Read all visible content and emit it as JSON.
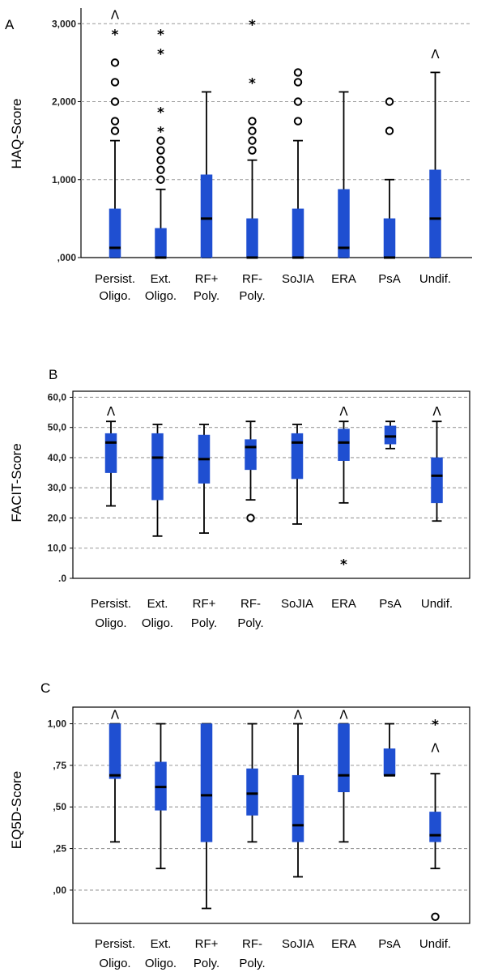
{
  "figure_top_fragment": "",
  "colors": {
    "box": "#1f4fd1",
    "median": "#000000",
    "grid": "#999999",
    "axis": "#000000"
  },
  "chart_data": [
    {
      "panel": "A",
      "type": "boxplot",
      "ylabel": "HAQ-Score",
      "ylim": [
        0,
        3.2
      ],
      "yticks": [
        0,
        1,
        2,
        3
      ],
      "ytick_labels": [
        ",000",
        "1,000",
        "2,000",
        "3,000"
      ],
      "categories": [
        "Persist.\nOligo.",
        "Ext.\nOligo.",
        "RF+\nPoly.",
        "RF-\nPoly.",
        "SoJIA",
        "ERA",
        "PsA",
        "Undif."
      ],
      "boxes": [
        {
          "whisker_low": 0,
          "q1": 0,
          "median": 0.125,
          "q3": 0.625,
          "whisker_high": 1.5,
          "outliers": [
            1.625,
            1.75,
            2.0,
            2.25,
            2.5
          ],
          "extremes": [
            2.875
          ],
          "caret": 3.1
        },
        {
          "whisker_low": 0,
          "q1": 0,
          "median": 0,
          "q3": 0.375,
          "whisker_high": 0.875,
          "outliers": [
            1.0,
            1.125,
            1.25,
            1.375,
            1.5
          ],
          "extremes": [
            1.625,
            1.875,
            2.625,
            2.875
          ],
          "caret": null
        },
        {
          "whisker_low": 0,
          "q1": 0,
          "median": 0.5,
          "q3": 1.0625,
          "whisker_high": 2.125,
          "outliers": [],
          "extremes": [],
          "caret": null
        },
        {
          "whisker_low": 0,
          "q1": 0,
          "median": 0,
          "q3": 0.5,
          "whisker_high": 1.25,
          "outliers": [
            1.375,
            1.5,
            1.625,
            1.75
          ],
          "extremes": [
            2.25,
            3.0
          ],
          "caret": null
        },
        {
          "whisker_low": 0,
          "q1": 0,
          "median": 0,
          "q3": 0.625,
          "whisker_high": 1.5,
          "outliers": [
            1.75,
            2.0,
            2.25,
            2.375
          ],
          "extremes": [],
          "caret": null
        },
        {
          "whisker_low": 0,
          "q1": 0,
          "median": 0.125,
          "q3": 0.875,
          "whisker_high": 2.125,
          "outliers": [],
          "extremes": [],
          "caret": null
        },
        {
          "whisker_low": 0,
          "q1": 0,
          "median": 0,
          "q3": 0.5,
          "whisker_high": 1.0,
          "outliers": [
            1.625,
            2.0
          ],
          "extremes": [],
          "caret": null
        },
        {
          "whisker_low": 0,
          "q1": 0,
          "median": 0.5,
          "q3": 1.125,
          "whisker_high": 2.375,
          "outliers": [],
          "extremes": [],
          "caret": 2.6
        }
      ]
    },
    {
      "panel": "B",
      "type": "boxplot",
      "ylabel": "FACIT-Score",
      "ylim": [
        0,
        62
      ],
      "yticks": [
        0,
        10,
        20,
        30,
        40,
        50,
        60
      ],
      "ytick_labels": [
        ".0",
        "10,0",
        "20,0",
        "30,0",
        "40,0",
        "50,0",
        "60,0"
      ],
      "categories": [
        "Persist.\nOligo.",
        "Ext.\nOligo.",
        "RF+\nPoly.",
        "RF-\nPoly.",
        "SoJIA",
        "ERA",
        "PsA",
        "Undif."
      ],
      "boxes": [
        {
          "whisker_low": 24,
          "q1": 35,
          "median": 45,
          "q3": 48,
          "whisker_high": 52,
          "outliers": [],
          "extremes": [],
          "caret": 55
        },
        {
          "whisker_low": 14,
          "q1": 26,
          "median": 40,
          "q3": 48,
          "whisker_high": 51,
          "outliers": [],
          "extremes": [],
          "caret": null
        },
        {
          "whisker_low": 15,
          "q1": 31.5,
          "median": 39.5,
          "q3": 47.5,
          "whisker_high": 51,
          "outliers": [],
          "extremes": [],
          "caret": null
        },
        {
          "whisker_low": 26,
          "q1": 36,
          "median": 43.5,
          "q3": 46,
          "whisker_high": 52,
          "outliers": [
            20
          ],
          "extremes": [],
          "caret": null
        },
        {
          "whisker_low": 18,
          "q1": 33,
          "median": 45,
          "q3": 48,
          "whisker_high": 51,
          "outliers": [],
          "extremes": [],
          "caret": null
        },
        {
          "whisker_low": 25,
          "q1": 39,
          "median": 45,
          "q3": 49.5,
          "whisker_high": 52,
          "outliers": [],
          "extremes": [
            5
          ],
          "caret": 55
        },
        {
          "whisker_low": 43,
          "q1": 44.5,
          "median": 47,
          "q3": 50.5,
          "whisker_high": 52,
          "outliers": [],
          "extremes": [],
          "caret": null
        },
        {
          "whisker_low": 19,
          "q1": 25,
          "median": 34,
          "q3": 40,
          "whisker_high": 52,
          "outliers": [],
          "extremes": [],
          "caret": 55
        }
      ]
    },
    {
      "panel": "C",
      "type": "boxplot",
      "ylabel": "EQ5D-Score",
      "ylim": [
        -0.2,
        1.1
      ],
      "yticks": [
        0,
        0.25,
        0.5,
        0.75,
        1.0
      ],
      "ytick_labels": [
        ",00",
        ",25",
        ",50",
        ",75",
        "1,00"
      ],
      "categories": [
        "Persist.\nOligo.",
        "Ext.\nOligo.",
        "RF+\nPoly.",
        "RF-\nPoly.",
        "SoJIA",
        "ERA",
        "PsA",
        "Undif."
      ],
      "boxes": [
        {
          "whisker_low": 0.29,
          "q1": 0.67,
          "median": 0.69,
          "q3": 1.0,
          "whisker_high": 1.0,
          "outliers": [],
          "extremes": [],
          "caret": 1.05
        },
        {
          "whisker_low": 0.13,
          "q1": 0.48,
          "median": 0.62,
          "q3": 0.77,
          "whisker_high": 1.0,
          "outliers": [],
          "extremes": [],
          "caret": null
        },
        {
          "whisker_low": -0.11,
          "q1": 0.29,
          "median": 0.57,
          "q3": 1.0,
          "whisker_high": 1.0,
          "outliers": [],
          "extremes": [],
          "caret": null
        },
        {
          "whisker_low": 0.29,
          "q1": 0.45,
          "median": 0.58,
          "q3": 0.73,
          "whisker_high": 1.0,
          "outliers": [],
          "extremes": [],
          "caret": null
        },
        {
          "whisker_low": 0.08,
          "q1": 0.29,
          "median": 0.39,
          "q3": 0.69,
          "whisker_high": 1.0,
          "outliers": [],
          "extremes": [],
          "caret": 1.05
        },
        {
          "whisker_low": 0.29,
          "q1": 0.59,
          "median": 0.69,
          "q3": 1.0,
          "whisker_high": 1.0,
          "outliers": [],
          "extremes": [],
          "caret": 1.05
        },
        {
          "whisker_low": 0.69,
          "q1": 0.69,
          "median": 0.69,
          "q3": 0.85,
          "whisker_high": 1.0,
          "outliers": [],
          "extremes": [],
          "caret": null
        },
        {
          "whisker_low": 0.13,
          "q1": 0.29,
          "median": 0.33,
          "q3": 0.47,
          "whisker_high": 0.7,
          "outliers": [
            -0.16
          ],
          "extremes": [
            1.0
          ],
          "caret": 0.85
        }
      ]
    }
  ]
}
